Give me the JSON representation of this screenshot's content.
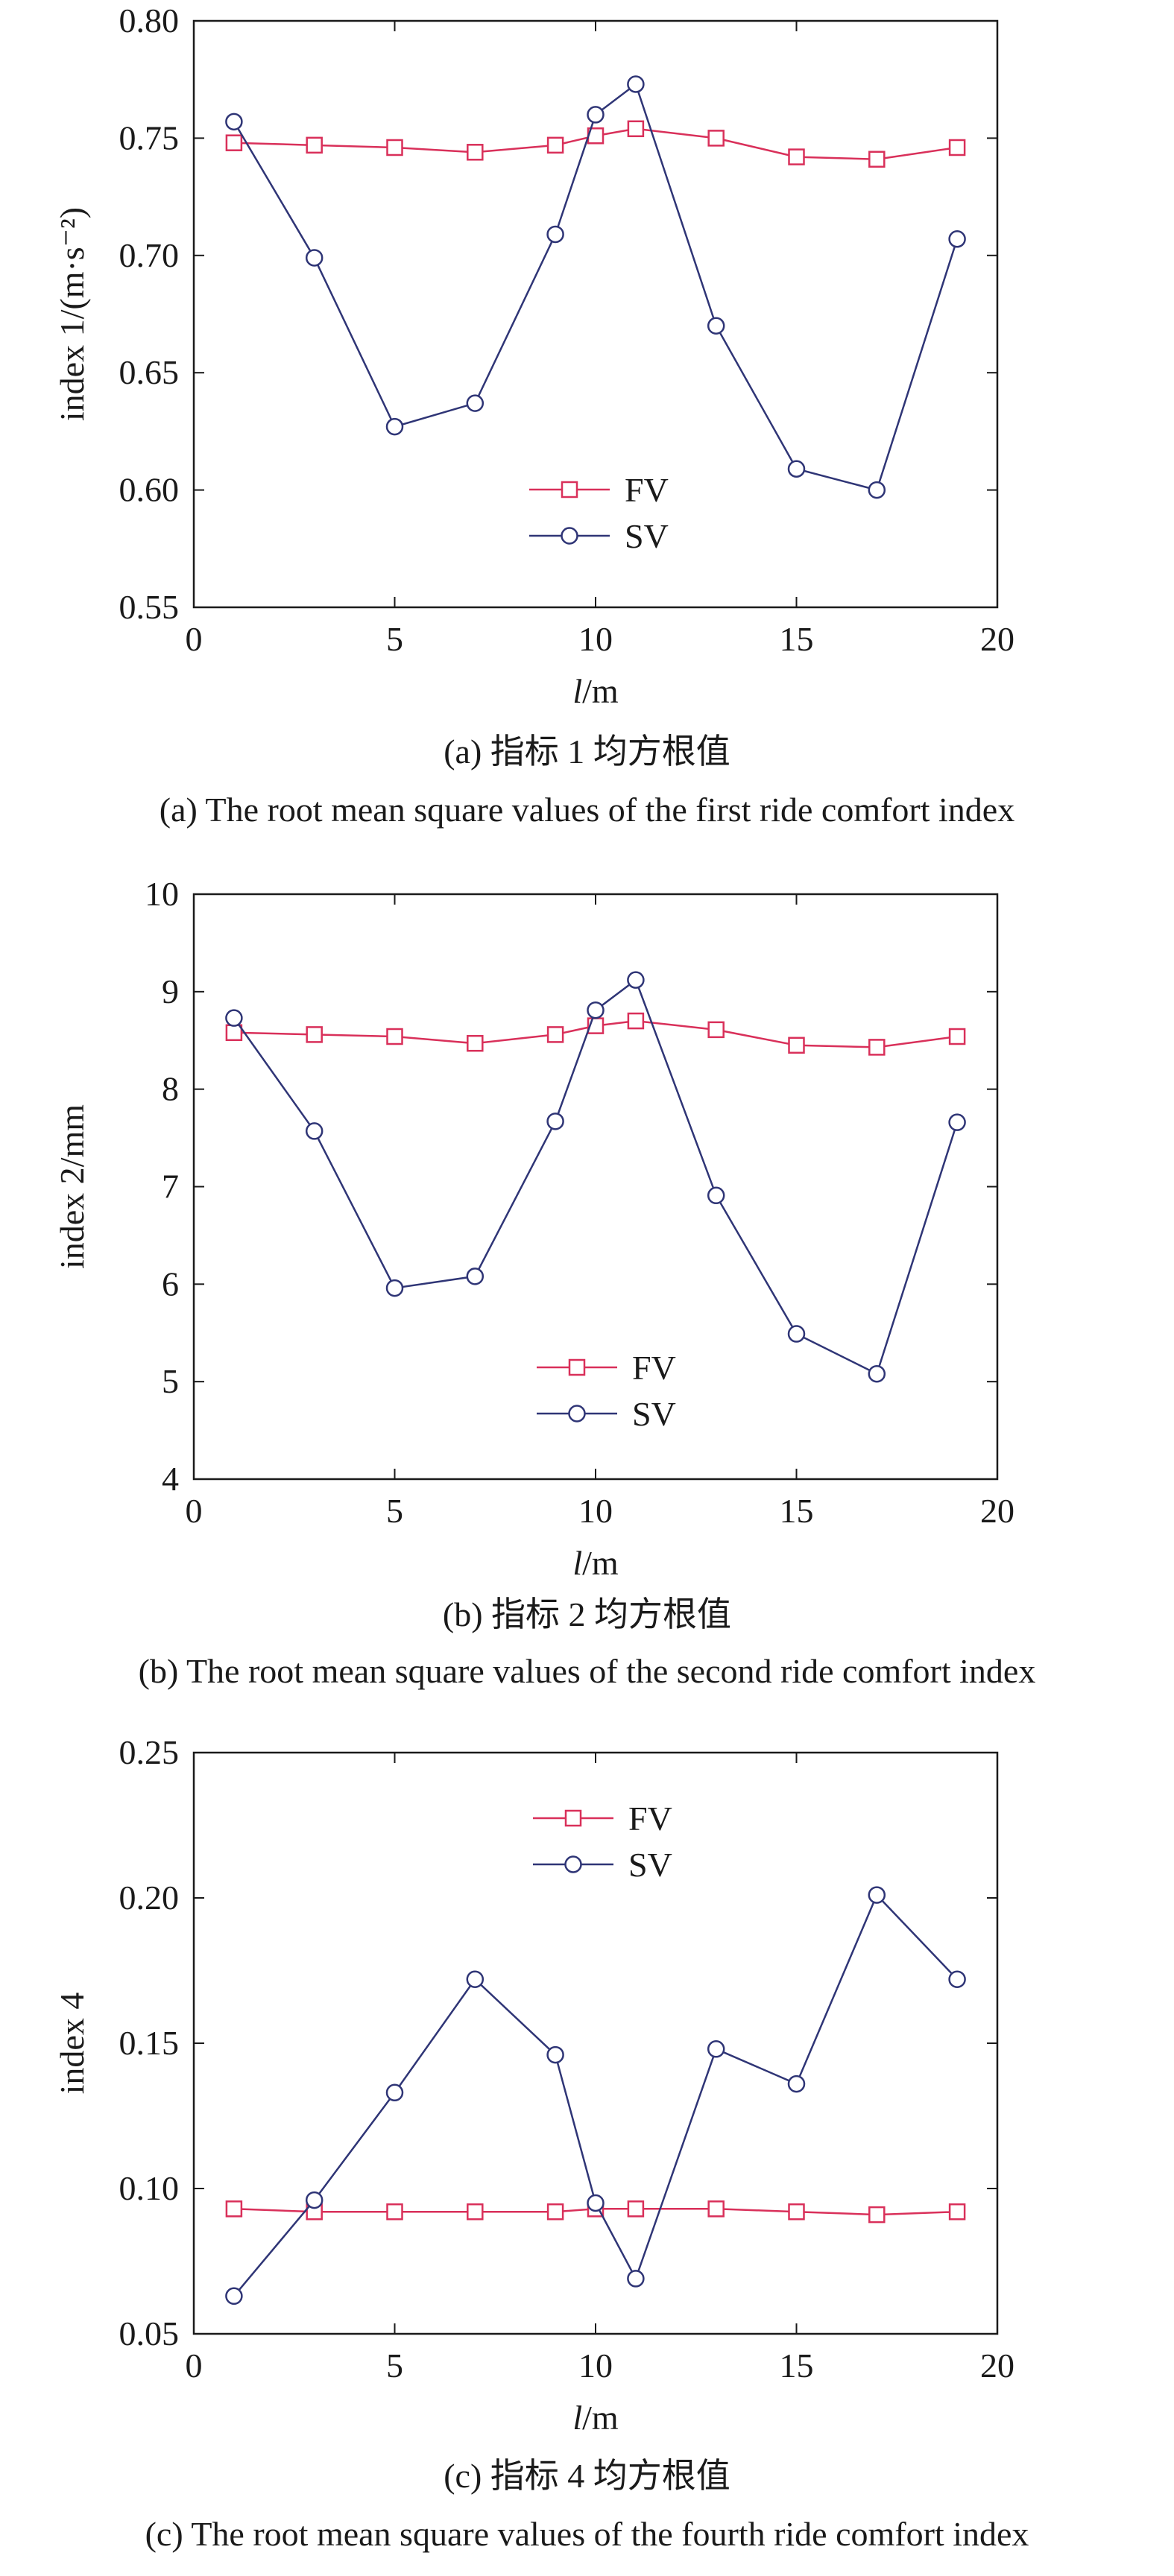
{
  "colors": {
    "fv": "#d9305a",
    "sv": "#2f3576",
    "axis": "#1a1a1a"
  },
  "chart_data": [
    {
      "type": "line",
      "xlabel_italic": "l",
      "xlabel_unit": "/m",
      "ylabel": "index 1/(m·s⁻²)",
      "xlim": [
        0,
        20
      ],
      "ylim": [
        0.55,
        0.8
      ],
      "xticks": [
        0,
        5,
        10,
        15,
        20
      ],
      "yticks": [
        0.55,
        0.6,
        0.65,
        0.7,
        0.75,
        0.8
      ],
      "ytick_labels": [
        "0.55",
        "0.60",
        "0.65",
        "0.70",
        "0.75",
        "0.80"
      ],
      "legend_position": "center-bottom",
      "series": [
        {
          "name": "FV",
          "marker": "square",
          "x": [
            1,
            3,
            5,
            7,
            9,
            10,
            11,
            13,
            15,
            17,
            19
          ],
          "y": [
            0.748,
            0.747,
            0.746,
            0.744,
            0.747,
            0.751,
            0.754,
            0.75,
            0.742,
            0.741,
            0.746
          ]
        },
        {
          "name": "SV",
          "marker": "circle",
          "x": [
            1,
            3,
            5,
            7,
            9,
            10,
            11,
            13,
            15,
            17,
            19
          ],
          "y": [
            0.757,
            0.699,
            0.627,
            0.637,
            0.709,
            0.76,
            0.773,
            0.67,
            0.609,
            0.6,
            0.707
          ]
        }
      ],
      "caption_cn": "(a) 指标 1 均方根值",
      "caption_en": "(a) The root mean square values of the first ride comfort index"
    },
    {
      "type": "line",
      "xlabel_italic": "l",
      "xlabel_unit": "/m",
      "ylabel": "index 2/mm",
      "xlim": [
        0,
        20
      ],
      "ylim": [
        4,
        10
      ],
      "xticks": [
        0,
        5,
        10,
        15,
        20
      ],
      "yticks": [
        4,
        5,
        6,
        7,
        8,
        9,
        10
      ],
      "ytick_labels": [
        "4",
        "5",
        "6",
        "7",
        "8",
        "9",
        "10"
      ],
      "legend_position": "center-bottom",
      "series": [
        {
          "name": "FV",
          "marker": "square",
          "x": [
            1,
            3,
            5,
            7,
            9,
            10,
            11,
            13,
            15,
            17,
            19
          ],
          "y": [
            8.58,
            8.56,
            8.54,
            8.47,
            8.56,
            8.65,
            8.7,
            8.61,
            8.45,
            8.43,
            8.54
          ]
        },
        {
          "name": "SV",
          "marker": "circle",
          "x": [
            1,
            3,
            5,
            7,
            9,
            10,
            11,
            13,
            15,
            17,
            19
          ],
          "y": [
            8.73,
            7.57,
            5.96,
            6.08,
            7.67,
            8.81,
            9.12,
            6.91,
            5.49,
            5.08,
            7.66
          ]
        }
      ],
      "caption_cn": "(b) 指标 2 均方根值",
      "caption_en": "(b) The root mean square values of the second ride comfort index"
    },
    {
      "type": "line",
      "xlabel_italic": "l",
      "xlabel_unit": "/m",
      "ylabel": "index 4",
      "xlim": [
        0,
        20
      ],
      "ylim": [
        0.05,
        0.25
      ],
      "xticks": [
        0,
        5,
        10,
        15,
        20
      ],
      "yticks": [
        0.05,
        0.1,
        0.15,
        0.2,
        0.25
      ],
      "ytick_labels": [
        "0.05",
        "0.10",
        "0.15",
        "0.20",
        "0.25"
      ],
      "legend_position": "top-center",
      "series": [
        {
          "name": "FV",
          "marker": "square",
          "x": [
            1,
            3,
            5,
            7,
            9,
            10,
            11,
            13,
            15,
            17,
            19
          ],
          "y": [
            0.093,
            0.092,
            0.092,
            0.092,
            0.092,
            0.093,
            0.093,
            0.093,
            0.092,
            0.091,
            0.092
          ]
        },
        {
          "name": "SV",
          "marker": "circle",
          "x": [
            1,
            3,
            5,
            7,
            9,
            10,
            11,
            13,
            15,
            17,
            19
          ],
          "y": [
            0.063,
            0.096,
            0.133,
            0.172,
            0.146,
            0.095,
            0.069,
            0.148,
            0.136,
            0.201,
            0.172
          ]
        }
      ],
      "caption_cn": "(c) 指标 4 均方根值",
      "caption_en": "(c) The root mean square values of the fourth ride comfort index"
    }
  ]
}
